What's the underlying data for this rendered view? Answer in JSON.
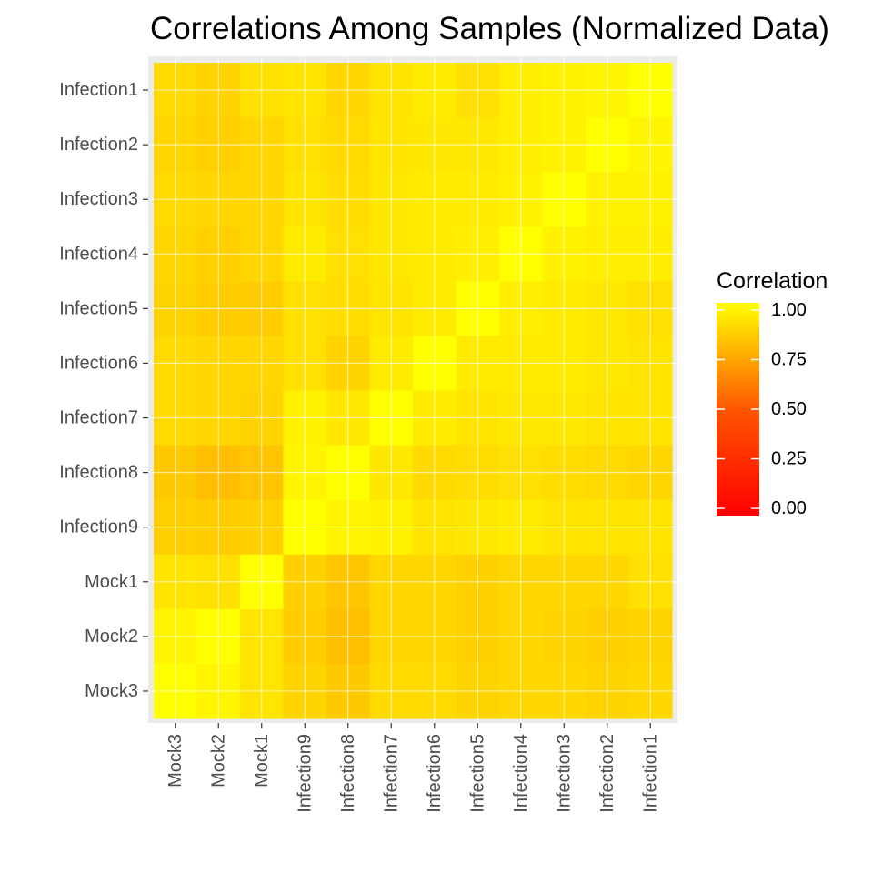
{
  "chart_data": {
    "type": "heatmap",
    "title": "Correlations Among Samples (Normalized Data)",
    "xlabel": "",
    "ylabel": "",
    "x_categories": [
      "Mock3",
      "Mock2",
      "Mock1",
      "Infection9",
      "Infection8",
      "Infection7",
      "Infection6",
      "Infection5",
      "Infection4",
      "Infection3",
      "Infection2",
      "Infection1"
    ],
    "y_categories": [
      "Infection1",
      "Infection2",
      "Infection3",
      "Infection4",
      "Infection5",
      "Infection6",
      "Infection7",
      "Infection8",
      "Infection9",
      "Mock1",
      "Mock2",
      "Mock3"
    ],
    "values": [
      [
        0.89,
        0.87,
        0.91,
        0.92,
        0.88,
        0.92,
        0.94,
        0.91,
        0.95,
        0.96,
        0.97,
        1.0
      ],
      [
        0.88,
        0.86,
        0.88,
        0.91,
        0.89,
        0.92,
        0.93,
        0.93,
        0.95,
        0.96,
        1.0,
        0.97
      ],
      [
        0.89,
        0.88,
        0.88,
        0.92,
        0.9,
        0.93,
        0.94,
        0.94,
        0.96,
        1.0,
        0.96,
        0.96
      ],
      [
        0.88,
        0.86,
        0.88,
        0.94,
        0.91,
        0.93,
        0.94,
        0.95,
        1.0,
        0.96,
        0.95,
        0.95
      ],
      [
        0.87,
        0.85,
        0.85,
        0.91,
        0.9,
        0.92,
        0.94,
        1.0,
        0.95,
        0.94,
        0.93,
        0.91
      ],
      [
        0.89,
        0.88,
        0.88,
        0.91,
        0.87,
        0.94,
        1.0,
        0.94,
        0.94,
        0.94,
        0.93,
        0.92
      ],
      [
        0.89,
        0.88,
        0.87,
        0.96,
        0.93,
        1.0,
        0.94,
        0.92,
        0.93,
        0.93,
        0.92,
        0.92
      ],
      [
        0.84,
        0.81,
        0.83,
        0.97,
        1.0,
        0.93,
        0.89,
        0.9,
        0.91,
        0.9,
        0.89,
        0.88
      ],
      [
        0.86,
        0.85,
        0.86,
        1.0,
        0.97,
        0.96,
        0.92,
        0.93,
        0.94,
        0.92,
        0.92,
        0.92
      ],
      [
        0.92,
        0.91,
        1.0,
        0.86,
        0.83,
        0.88,
        0.88,
        0.86,
        0.88,
        0.88,
        0.88,
        0.91
      ],
      [
        0.97,
        1.0,
        0.92,
        0.85,
        0.81,
        0.88,
        0.88,
        0.86,
        0.88,
        0.87,
        0.86,
        0.87
      ],
      [
        1.0,
        0.97,
        0.92,
        0.87,
        0.84,
        0.89,
        0.89,
        0.87,
        0.88,
        0.88,
        0.87,
        0.88
      ]
    ],
    "legend": {
      "title": "Correlation",
      "placement": "right",
      "ticks": [
        "0.00",
        "0.25",
        "0.50",
        "0.75",
        "1.00"
      ],
      "range": [
        0,
        1
      ]
    },
    "color_scale": {
      "low": "#ff0000",
      "high": "#ffff00"
    },
    "panel_background": "#ebebeb",
    "grid": true
  }
}
